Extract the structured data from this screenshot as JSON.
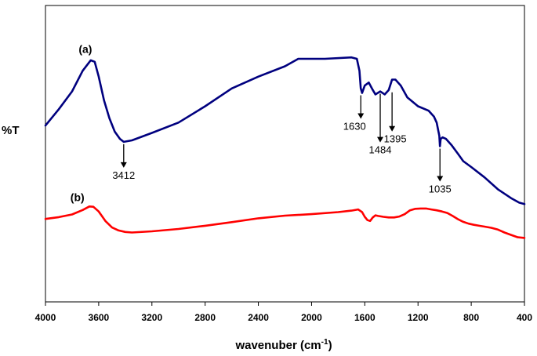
{
  "chart_data": {
    "type": "line",
    "title": "",
    "xlabel": "wavenuber (cm",
    "xlabel_sup": "-1",
    "xlabel_close": ")",
    "ylabel": "%T",
    "xlim": [
      4000,
      400
    ],
    "ylim": [
      0,
      100
    ],
    "grid": false,
    "x_ticks": [
      4000,
      3600,
      3200,
      2800,
      2400,
      2000,
      1600,
      1200,
      800,
      400
    ],
    "x_tick_labels": [
      "4000",
      "3600",
      "3200",
      "2800",
      "2400",
      "2000",
      "1600",
      "1200",
      "800",
      "400"
    ],
    "series": [
      {
        "name": "(a)",
        "color": "#00007f",
        "x": [
          4000,
          3900,
          3800,
          3720,
          3660,
          3630,
          3600,
          3560,
          3520,
          3480,
          3440,
          3412,
          3350,
          3200,
          3000,
          2800,
          2600,
          2400,
          2200,
          2100,
          1900,
          1700,
          1660,
          1640,
          1630,
          1620,
          1600,
          1570,
          1540,
          1520,
          1484,
          1450,
          1420,
          1395,
          1370,
          1330,
          1280,
          1200,
          1120,
          1080,
          1060,
          1040,
          1035,
          1030,
          1015,
          990,
          950,
          900,
          860,
          800,
          700,
          600,
          500,
          440,
          400
        ],
        "y": [
          59.5,
          65,
          71,
          78,
          81.5,
          81,
          76,
          68,
          62,
          57.5,
          55,
          54,
          54.5,
          57,
          60.5,
          66,
          72,
          76,
          79.5,
          82,
          82,
          82.5,
          82,
          78,
          72,
          70.5,
          73,
          74,
          71.5,
          70,
          71,
          70,
          71.5,
          75,
          75,
          73,
          69,
          66,
          64.5,
          62.5,
          60.5,
          56,
          52.5,
          55,
          55.5,
          55,
          53,
          50,
          47.5,
          45.5,
          42,
          38,
          35,
          33.5,
          33
        ]
      },
      {
        "name": "(b)",
        "color": "#ff0000",
        "x": [
          4000,
          3900,
          3800,
          3720,
          3670,
          3640,
          3600,
          3550,
          3500,
          3450,
          3400,
          3350,
          3200,
          3000,
          2800,
          2600,
          2400,
          2200,
          2000,
          1800,
          1700,
          1650,
          1620,
          1600,
          1580,
          1560,
          1540,
          1520,
          1500,
          1460,
          1420,
          1380,
          1340,
          1300,
          1260,
          1220,
          1180,
          1140,
          1100,
          1060,
          1020,
          980,
          940,
          900,
          860,
          820,
          780,
          740,
          700,
          650,
          600,
          550,
          500,
          450,
          400
        ],
        "y": [
          28,
          28.6,
          29.5,
          31,
          32.2,
          32.1,
          30.5,
          27.3,
          25.1,
          24.1,
          23.6,
          23.4,
          23.8,
          24.6,
          25.7,
          26.9,
          28.2,
          29.1,
          29.6,
          30.3,
          30.8,
          31.2,
          30.3,
          28.7,
          27.6,
          27.3,
          28.5,
          29.2,
          29,
          28.7,
          28.5,
          28.5,
          28.8,
          29.6,
          30.9,
          31.4,
          31.5,
          31.5,
          31.2,
          30.9,
          30.5,
          30,
          29,
          27.9,
          27,
          26.4,
          26,
          25.7,
          25.4,
          25,
          24.4,
          23.4,
          22.6,
          21.8,
          21.6
        ]
      }
    ],
    "annotations": [
      {
        "label": "3412",
        "x": 3412,
        "y": 54,
        "arrow_len": 30,
        "text_dx": 0,
        "text_dy": 14
      },
      {
        "label": "1630",
        "x": 1630,
        "y": 70.5,
        "arrow_len": 30,
        "text_dx": -8,
        "text_dy": 14
      },
      {
        "label": "1484",
        "x": 1484,
        "y": 71,
        "arrow_len": 62,
        "text_dx": 0,
        "text_dy": 14
      },
      {
        "label": "1395",
        "x": 1395,
        "y": 71.5,
        "arrow_len": 50,
        "text_dx": 4,
        "text_dy": 14
      },
      {
        "label": "1035",
        "x": 1035,
        "y": 52.5,
        "arrow_len": 42,
        "text_dx": 0,
        "text_dy": 14
      }
    ],
    "curve_labels": [
      {
        "label": "(a)",
        "x": 3700,
        "y": 84
      },
      {
        "label": "(b)",
        "x": 3760,
        "y": 34
      }
    ]
  }
}
